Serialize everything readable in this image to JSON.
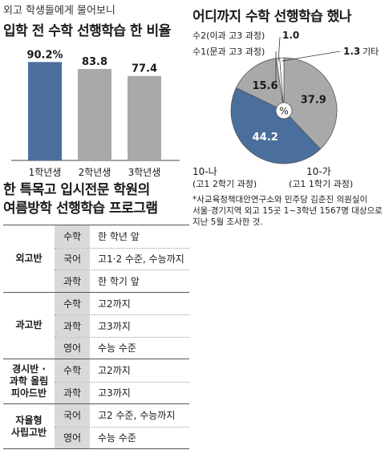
{
  "header": {
    "kicker": "외고 학생들에게 물어보니",
    "left_title": "입학 전 수학 선행학습 한 비율",
    "right_title": "어디까지 수학 선행학습 했나"
  },
  "colors": {
    "bar_primary": "#4a6f9c",
    "bar_secondary": "#a9a9ab",
    "pie_blue": "#4a6f9c",
    "pie_gray": "#a9a9ab",
    "subject_bg": "#d9d9d9"
  },
  "chart_data": [
    {
      "type": "bar",
      "categories": [
        "1학년생",
        "2학년생",
        "3학년생"
      ],
      "values": [
        90.2,
        83.8,
        77.4
      ],
      "value_labels": [
        "90.2%",
        "83.8",
        "77.4"
      ],
      "highlight_index": 0
    },
    {
      "type": "pie",
      "center_label": "%",
      "slices": [
        {
          "value": 37.9,
          "label": "37.9",
          "category": "10-가",
          "sublabel": "(고1 1학기 과정)",
          "color": "#a9a9ab"
        },
        {
          "value": 44.2,
          "label": "44.2",
          "category": "10-나",
          "sublabel": "(고1 2학기 과정)",
          "color": "#4a6f9c"
        },
        {
          "value": 15.6,
          "label": "15.6",
          "category": "수1(문과 고3 과정)",
          "sublabel": "",
          "color": "#a9a9ab"
        },
        {
          "value": 1.0,
          "label": "1.0",
          "category": "수2(이과 고3 과정)",
          "sublabel": "",
          "color": "#ffffff"
        },
        {
          "value": 1.3,
          "label": "1.3",
          "category": "기타",
          "sublabel": "",
          "color": "#ffffff"
        }
      ]
    }
  ],
  "notes": [
    "*사교육정책대안연구소와 민주당 김춘진 의원실이",
    "서울·경기지역 외고 15곳 1~3학년 1567명 대상으로",
    "지난 5월 조사한 것."
  ],
  "program": {
    "title_line1": "한 특목고 입시전문 학원의",
    "title_line2": "여름방학 선행학습 프로그램",
    "groups": [
      {
        "name_lines": [
          "외고반"
        ],
        "rows": [
          {
            "subject": "수학",
            "desc": "한 학년 앞"
          },
          {
            "subject": "국어",
            "desc": "고1·2 수준, 수능까지"
          },
          {
            "subject": "과학",
            "desc": "한 학기 앞"
          }
        ]
      },
      {
        "name_lines": [
          "과고반"
        ],
        "rows": [
          {
            "subject": "수학",
            "desc": "고2까지"
          },
          {
            "subject": "과학",
            "desc": "고3까지"
          },
          {
            "subject": "영어",
            "desc": "수능 수준"
          }
        ]
      },
      {
        "name_lines": [
          "경시반 ·",
          "과학 올림",
          "피아드반"
        ],
        "rows": [
          {
            "subject": "수학",
            "desc": "고2까지"
          },
          {
            "subject": "과학",
            "desc": "고3까지"
          }
        ]
      },
      {
        "name_lines": [
          "자율형",
          "사립고반"
        ],
        "rows": [
          {
            "subject": "국어",
            "desc": "고2 수준, 수능까지"
          },
          {
            "subject": "영어",
            "desc": "수능 수준"
          }
        ]
      }
    ]
  }
}
